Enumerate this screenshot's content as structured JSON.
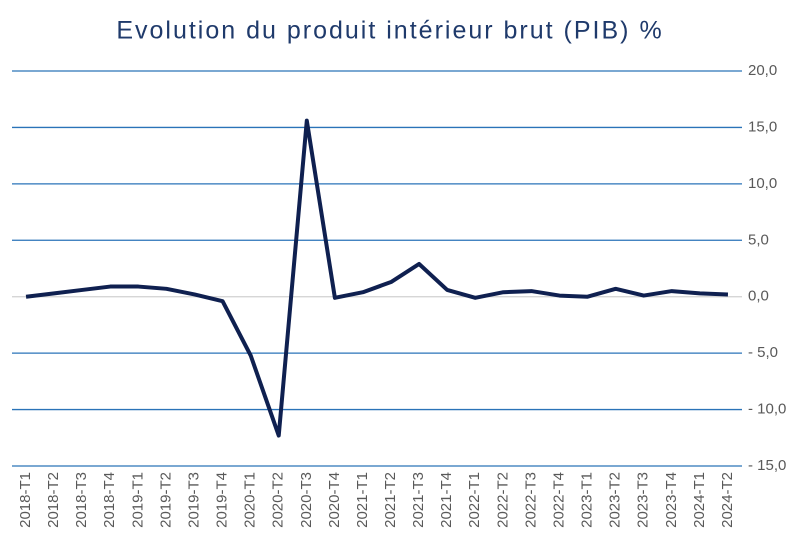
{
  "chart_data": {
    "type": "line",
    "title": "Evolution du produit intérieur brut (PIB) %",
    "categories": [
      "2018-T1",
      "2018-T2",
      "2018-T3",
      "2018-T4",
      "2019-T1",
      "2019-T2",
      "2019-T3",
      "2019-T4",
      "2020-T1",
      "2020-T2",
      "2020-T3",
      "2020-T4",
      "2021-T1",
      "2021-T2",
      "2021-T3",
      "2021-T4",
      "2022-T1",
      "2022-T2",
      "2022-T3",
      "2022-T4",
      "2023-T1",
      "2023-T2",
      "2023-T3",
      "2023-T4",
      "2024-T1",
      "2024-T2"
    ],
    "series": [
      {
        "name": "PIB",
        "color": "#0f2050",
        "values": [
          0.0,
          0.3,
          0.6,
          0.9,
          0.9,
          0.7,
          0.2,
          -0.4,
          -5.2,
          -12.3,
          15.6,
          -0.1,
          0.4,
          1.3,
          2.9,
          0.6,
          -0.1,
          0.4,
          0.5,
          0.1,
          0.0,
          0.7,
          0.1,
          0.5,
          0.3,
          0.2
        ]
      }
    ],
    "ylim": [
      -15,
      20
    ],
    "yticks": [
      {
        "value": -15,
        "label": "- 15,0"
      },
      {
        "value": -10,
        "label": "- 10,0"
      },
      {
        "value": -5,
        "label": "- 5,0"
      },
      {
        "value": 0,
        "label": "0,0"
      },
      {
        "value": 5,
        "label": "5,0"
      },
      {
        "value": 10,
        "label": "10,0"
      },
      {
        "value": 15,
        "label": "15,0"
      },
      {
        "value": 20,
        "label": "20,0"
      }
    ],
    "grid": true,
    "grid_color": "#2a73b8",
    "zero_line_color": "#d0d0d0"
  }
}
